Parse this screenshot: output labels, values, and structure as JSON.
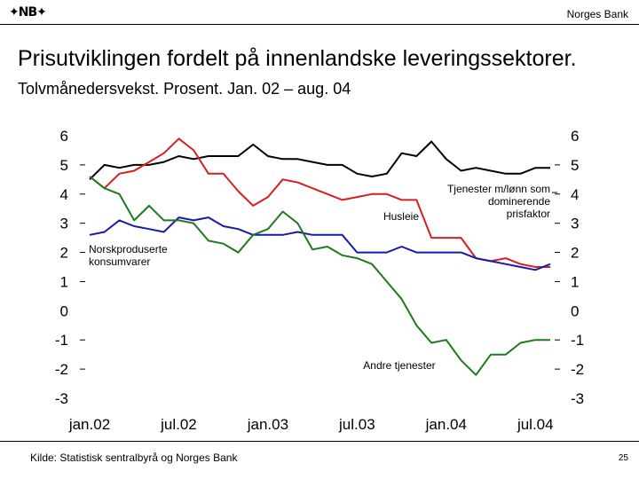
{
  "header": {
    "logo": "✦NB✦",
    "bank_name": "Norges Bank"
  },
  "title": {
    "main": "Prisutviklingen fordelt på innenlandske leveringssektorer.",
    "sub": "Tolvmånedersvekst. Prosent. Jan. 02 – aug. 04"
  },
  "footer": {
    "source": "Kilde: Statistisk sentralbyrå og Norges Bank",
    "page": "25"
  },
  "colors": {
    "black": "#000000",
    "red": "#d42020",
    "blue": "#1a1aa8",
    "green": "#1e7a1e"
  },
  "chart_data": {
    "type": "line",
    "title": "Prisutviklingen fordelt på innenlandske leveringssektorer",
    "ylim": [
      -3,
      6
    ],
    "yticks": [
      "6",
      "5",
      "4",
      "3",
      "2",
      "1",
      "0",
      "-1",
      "-2",
      "-3"
    ],
    "xticks": [
      "jan.02",
      "jul.02",
      "jan.03",
      "jul.03",
      "jan.04",
      "jul.04"
    ],
    "x_range": [
      1,
      32
    ],
    "series": [
      {
        "name": "Tjenester m/lønn som dominerende prisfaktor",
        "color": "#000000",
        "values": [
          4.5,
          5.0,
          4.9,
          5.0,
          5.0,
          5.1,
          5.3,
          5.2,
          5.3,
          5.3,
          5.3,
          5.7,
          5.3,
          5.2,
          5.2,
          5.1,
          5.0,
          5.0,
          4.7,
          4.6,
          4.7,
          5.4,
          5.3,
          5.8,
          5.2,
          4.8,
          4.9,
          4.8,
          4.7,
          4.7,
          4.9,
          4.9
        ]
      },
      {
        "name": "Husleie",
        "color": "#d42020",
        "values": [
          4.6,
          4.2,
          4.7,
          4.8,
          5.1,
          5.4,
          5.9,
          5.5,
          4.7,
          4.7,
          4.1,
          3.6,
          3.9,
          4.5,
          4.4,
          4.2,
          4.0,
          3.8,
          3.9,
          4.0,
          4.0,
          3.8,
          3.8,
          2.5,
          2.5,
          2.5,
          1.8,
          1.7,
          1.8,
          1.6,
          1.5,
          1.5
        ]
      },
      {
        "name": "Norskproduserte konsumvarer",
        "color": "#1a1aa8",
        "values": [
          2.6,
          2.7,
          3.1,
          2.9,
          2.8,
          2.7,
          3.2,
          3.1,
          3.2,
          2.9,
          2.8,
          2.6,
          2.6,
          2.6,
          2.7,
          2.6,
          2.6,
          2.6,
          2.0,
          2.0,
          2.0,
          2.2,
          2.0,
          2.0,
          2.0,
          2.0,
          1.8,
          1.7,
          1.6,
          1.5,
          1.4,
          1.6
        ]
      },
      {
        "name": "Andre tjenester",
        "color": "#1e7a1e",
        "values": [
          4.6,
          4.2,
          4.0,
          3.1,
          3.6,
          3.1,
          3.1,
          3.0,
          2.4,
          2.3,
          2.0,
          2.6,
          2.8,
          3.4,
          3.0,
          2.1,
          2.2,
          1.9,
          1.8,
          1.6,
          1.0,
          0.4,
          -0.5,
          -1.1,
          -1.0,
          -1.7,
          -2.2,
          -1.5,
          -1.5,
          -1.1,
          -1.0,
          -1.0
        ]
      }
    ],
    "annotations": {
      "tjenester": [
        "Tjenester m/lønn som",
        "dominerende",
        "prisfaktor"
      ],
      "husleie": "Husleie",
      "norsk": [
        "Norskproduserte",
        "konsumvarer"
      ],
      "andre": "Andre tjenester"
    }
  }
}
